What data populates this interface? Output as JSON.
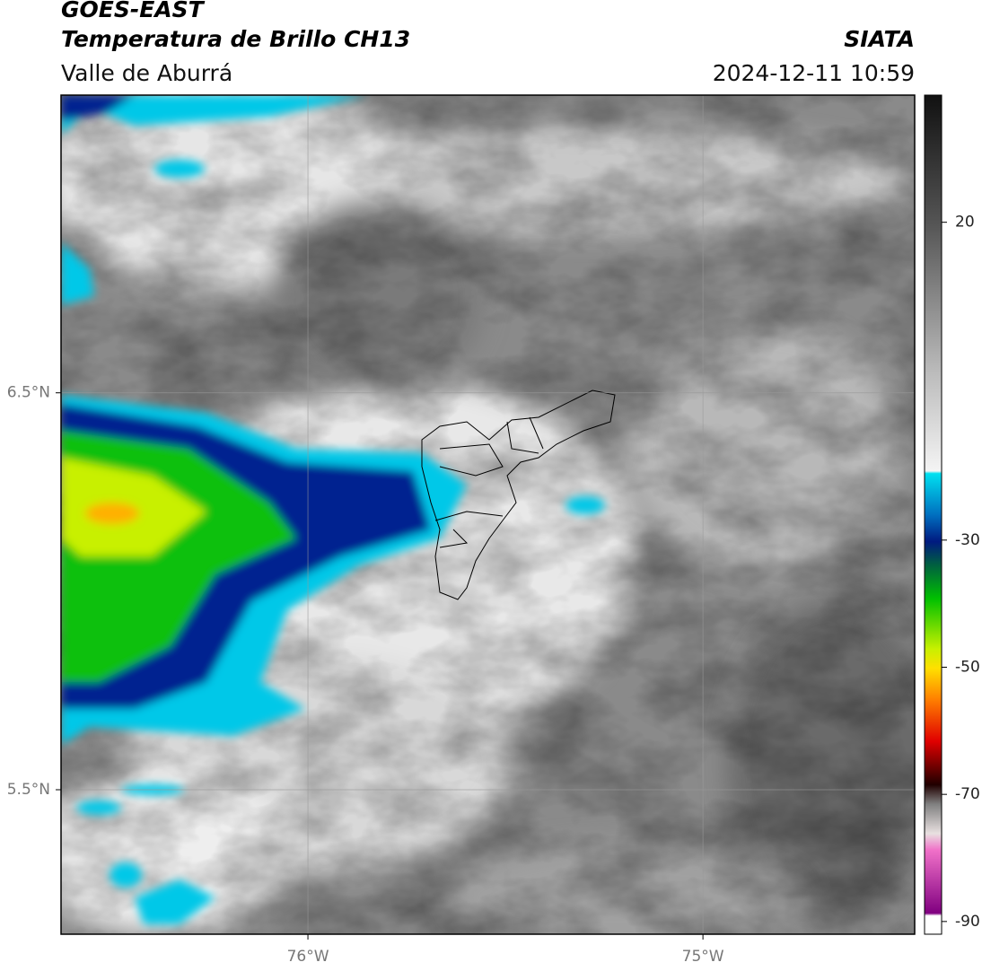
{
  "header": {
    "title": "GOES-EAST",
    "subtitle": "Temperatura de Brillo CH13",
    "region": "Valle de Aburrá",
    "source": "SIATA",
    "timestamp": "2024-12-11 10:59"
  },
  "map": {
    "latlim": [
      5.136,
      7.25
    ],
    "lonlim": [
      -76.625,
      -74.464
    ],
    "latticks": [
      {
        "value": 6.5,
        "label": "6.5°N"
      },
      {
        "value": 5.5,
        "label": "5.5°N"
      }
    ],
    "lonticks": [
      {
        "value": -76,
        "label": "76°W"
      },
      {
        "value": -75,
        "label": "75°W"
      }
    ],
    "grid": true
  },
  "colorbar": {
    "lim": [
      -92,
      40
    ],
    "ticks": [
      20,
      -30,
      -50,
      -70,
      -90
    ]
  }
}
